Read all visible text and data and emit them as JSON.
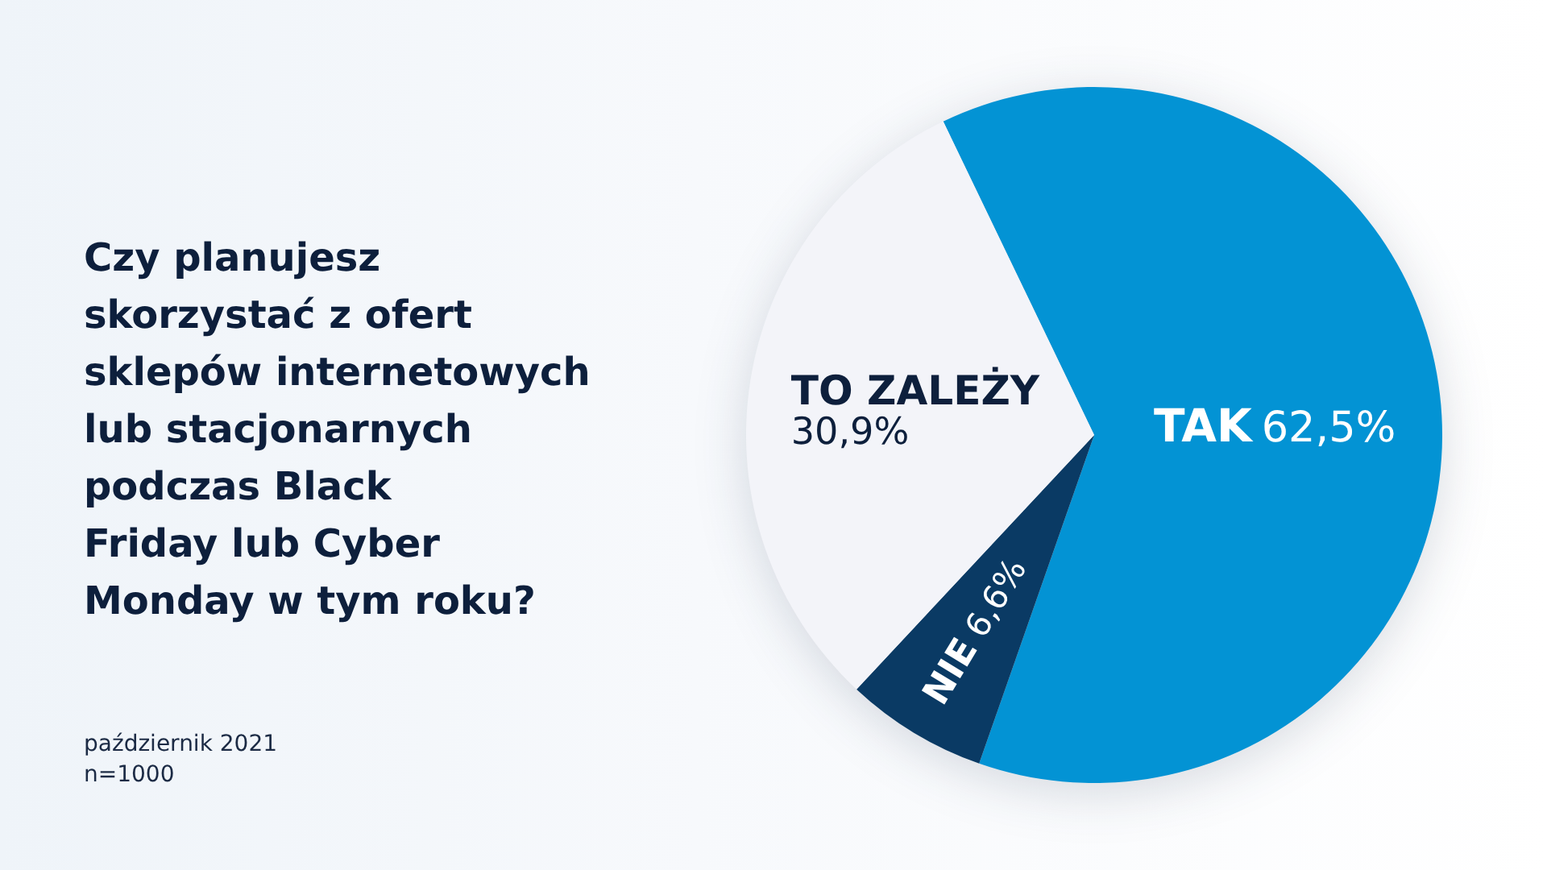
{
  "chart_data": {
    "type": "pie",
    "title": "Czy planujesz\nskorzystać z ofert\nsklepów internetowych\nlub stacjonarnych\npodczas Black\nFriday lub Cyber\nMonday w tym roku?",
    "categories": [
      "TAK",
      "NIE",
      "TO ZALEŻY"
    ],
    "values": [
      62.5,
      6.6,
      30.9
    ],
    "colors": [
      "#0393d4",
      "#0a3a64",
      "#f3f4f9"
    ],
    "value_labels": [
      "62,5%",
      "6,6%",
      "30,9%"
    ],
    "annotations": [
      "październik 2021",
      "n=1000"
    ]
  }
}
